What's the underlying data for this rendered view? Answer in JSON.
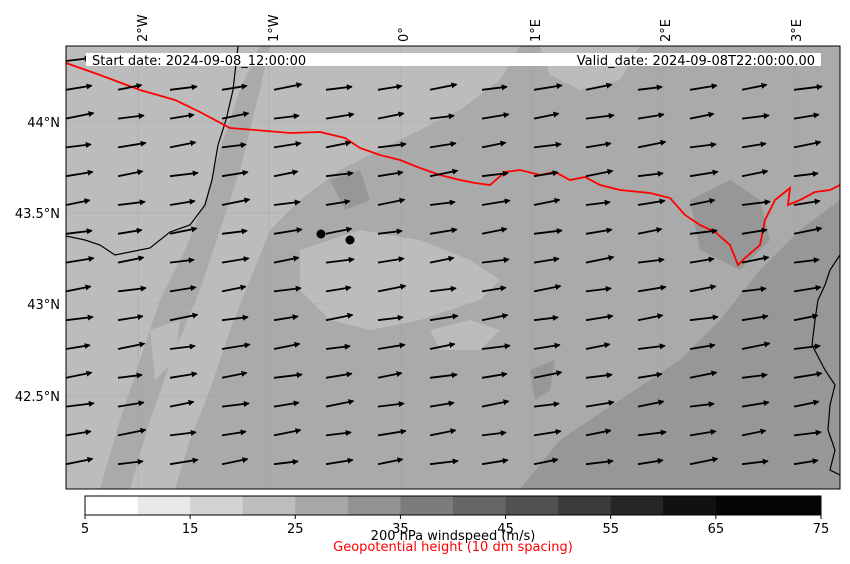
{
  "header": {
    "start_date": "Start date: 2024-09-08_12:00:00",
    "valid_date": "Valid_date: 2024-09-08T22:00:00.00"
  },
  "axes": {
    "lon_ticks": [
      "2°W",
      "1°W",
      "0°",
      "1°E",
      "2°E",
      "3°E"
    ],
    "lat_ticks": [
      "44°N",
      "43.5°N",
      "43°N",
      "42.5°N"
    ]
  },
  "colorbar": {
    "title": "200 hPa windspeed (m/s)",
    "subtitle": "Geopotential height (10 dm spacing)",
    "tick_labels": [
      "5",
      "15",
      "25",
      "35",
      "45",
      "55",
      "65",
      "75"
    ],
    "colors": [
      "#ffffff",
      "#e8e8e8",
      "#d3d3d3",
      "#bdbdbd",
      "#a8a8a8",
      "#929292",
      "#7c7c7c",
      "#666666",
      "#515151",
      "#3b3b3b",
      "#262626",
      "#111111",
      "#050505"
    ],
    "subtitle_color": "#ff0000"
  },
  "map": {
    "background_color": "#aaaaaa",
    "light_shade": "#bcbcbc",
    "dark_shade": "#979797",
    "height_contour_color": "#ff0000",
    "coast_color": "#000000",
    "arrow_color": "#000000",
    "points": 2
  }
}
